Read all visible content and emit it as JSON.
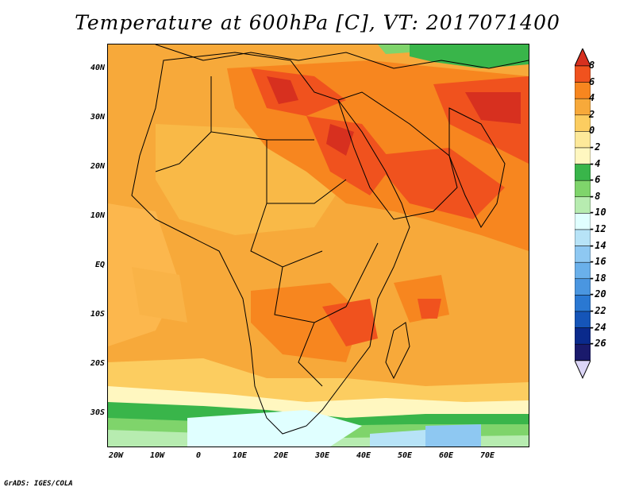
{
  "title": "Temperature at 600hPa [C], VT: 2017071400",
  "credit": "GrADS: IGES/COLA",
  "map": {
    "lat_labels": [
      "40N",
      "30N",
      "20N",
      "10N",
      "EQ",
      "10S",
      "20S",
      "30S"
    ],
    "lon_labels": [
      "20W",
      "10W",
      "0",
      "10E",
      "20E",
      "30E",
      "40E",
      "50E",
      "60E",
      "70E"
    ]
  },
  "colorbar": {
    "labels": [
      "8",
      "6",
      "4",
      "2",
      "0",
      "-2",
      "-4",
      "-6",
      "-8",
      "-10",
      "-12",
      "-14",
      "-16",
      "-18",
      "-20",
      "-22",
      "-24",
      "-26"
    ],
    "colors": [
      "#d7301f",
      "#f0521e",
      "#f7861f",
      "#f7a93a",
      "#fccd60",
      "#fde99a",
      "#fff7c0",
      "#39b54a",
      "#7fd46b",
      "#b7ecb0",
      "#e0ffff",
      "#b7e3f7",
      "#8ec8f2",
      "#6ab0ea",
      "#4a96e0",
      "#2a78d2",
      "#1555b8",
      "#0a2a8c",
      "#1a1a6c",
      "#dcd6f7"
    ]
  }
}
